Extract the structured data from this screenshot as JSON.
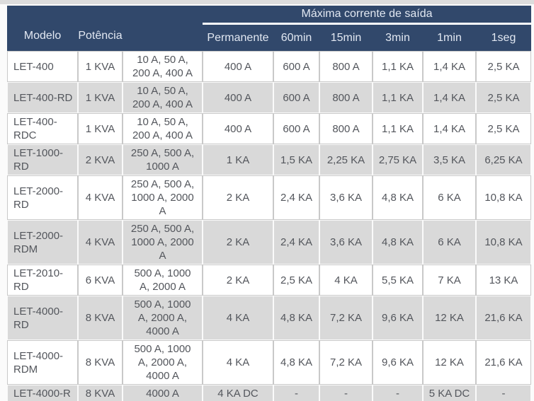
{
  "colors": {
    "header_bg": "#31486b",
    "header_text": "#e2e8f2",
    "row_bg_white": "#ffffff",
    "row_bg_gray": "#d9d9d9",
    "body_text": "#53565c",
    "group_separator_line": "#ffffff"
  },
  "chart_data": {
    "type": "table",
    "title": "Máxima corrente de saída",
    "group_header": {
      "label": "Máxima corrente de saída",
      "spans": [
        "Permanente",
        "60min",
        "15min",
        "3min",
        "1min",
        "1seg"
      ]
    },
    "columns": [
      "Modelo",
      "Potência",
      "",
      "Permanente",
      "60min",
      "15min",
      "3min",
      "1min",
      "1seg"
    ],
    "rows": [
      [
        "LET-400",
        "1 KVA",
        "10 A, 50 A, 200 A, 400 A",
        "400 A",
        "600 A",
        "800 A",
        "1,1 KA",
        "1,4 KA",
        "2,5 KA"
      ],
      [
        "LET-400-RD",
        "1 KVA",
        "10 A, 50 A, 200 A, 400 A",
        "400 A",
        "600 A",
        "800 A",
        "1,1 KA",
        "1,4 KA",
        "2,5 KA"
      ],
      [
        "LET-400-RDC",
        "1 KVA",
        "10 A, 50 A, 200 A, 400 A",
        "400 A",
        "600 A",
        "800 A",
        "1,1 KA",
        "1,4 KA",
        "2,5 KA"
      ],
      [
        "LET-1000-RD",
        "2 KVA",
        "250 A, 500 A, 1000 A",
        "1 KA",
        "1,5 KA",
        "2,25 KA",
        "2,75 KA",
        "3,5 KA",
        "6,25 KA"
      ],
      [
        "LET-2000-RD",
        "4 KVA",
        "250 A, 500 A, 1000 A, 2000 A",
        "2 KA",
        "2,4 KA",
        "3,6 KA",
        "4,8 KA",
        "6 KA",
        "10,8 KA"
      ],
      [
        "LET-2000-RDM",
        "4 KVA",
        "250 A, 500 A, 1000 A, 2000 A",
        "2 KA",
        "2,4 KA",
        "3,6 KA",
        "4,8 KA",
        "6 KA",
        "10,8 KA"
      ],
      [
        "LET-2010-RD",
        "6 KVA",
        "500 A, 1000 A, 2000 A",
        "2 KA",
        "2,5 KA",
        "4 KA",
        "5,5 KA",
        "7 KA",
        "13 KA"
      ],
      [
        "LET-4000-RD",
        "8 KVA",
        "500 A, 1000 A, 2000 A, 4000 A",
        "4 KA",
        "4,8 KA",
        "7,2 KA",
        "9,6 KA",
        "12 KA",
        "21,6 KA"
      ],
      [
        "LET-4000-RDM",
        "8 KVA",
        "500 A, 1000 A, 2000 A, 4000 A",
        "4 KA",
        "4,8 KA",
        "7,2 KA",
        "9,6 KA",
        "12 KA",
        "21,6 KA"
      ],
      [
        "LET-4000-R",
        "8 KVA",
        "4000 A",
        "4 KA DC",
        "-",
        "-",
        "-",
        "5 KA DC",
        "-"
      ]
    ]
  }
}
